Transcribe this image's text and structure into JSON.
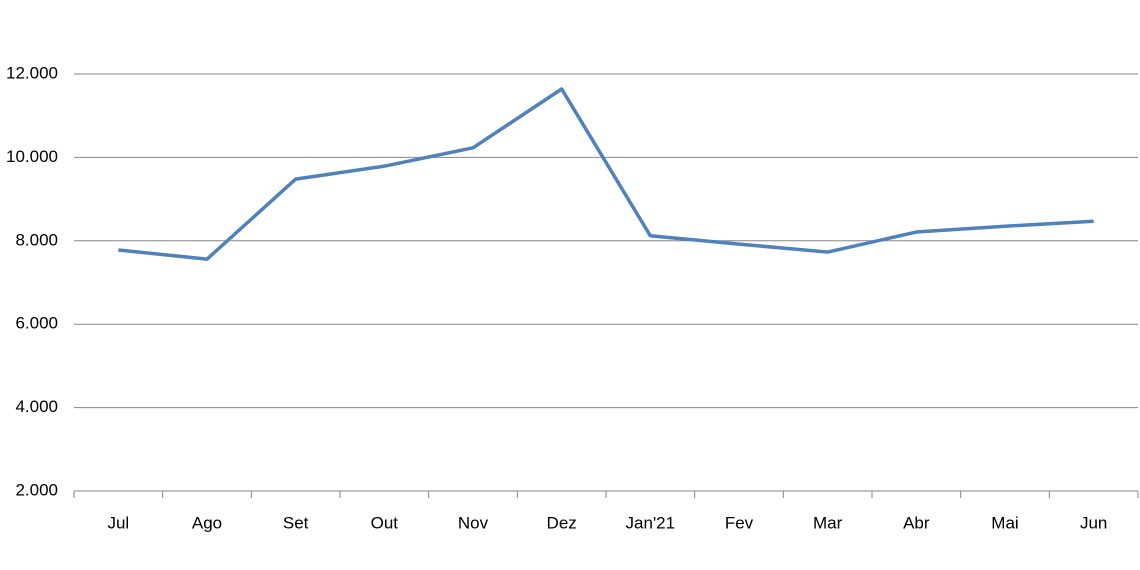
{
  "chart_data": {
    "type": "line",
    "categories": [
      "Jul",
      "Ago",
      "Set",
      "Out",
      "Nov",
      "Dez",
      "Jan'21",
      "Fev",
      "Mar",
      "Abr",
      "Mai",
      "Jun"
    ],
    "series": [
      {
        "color": "#4f81bd",
        "values": [
          7780,
          7560,
          9480,
          9790,
          10230,
          11640,
          8120,
          7920,
          7730,
          8210,
          8350,
          8470
        ]
      }
    ],
    "ylim": [
      2000,
      12000
    ],
    "yticks": [
      {
        "value": 2000,
        "label": "2.000"
      },
      {
        "value": 4000,
        "label": "4.000"
      },
      {
        "value": 6000,
        "label": "6.000"
      },
      {
        "value": 8000,
        "label": "8.000"
      },
      {
        "value": 10000,
        "label": "10.000"
      },
      {
        "value": 12000,
        "label": "12.000"
      }
    ],
    "grid": true
  }
}
